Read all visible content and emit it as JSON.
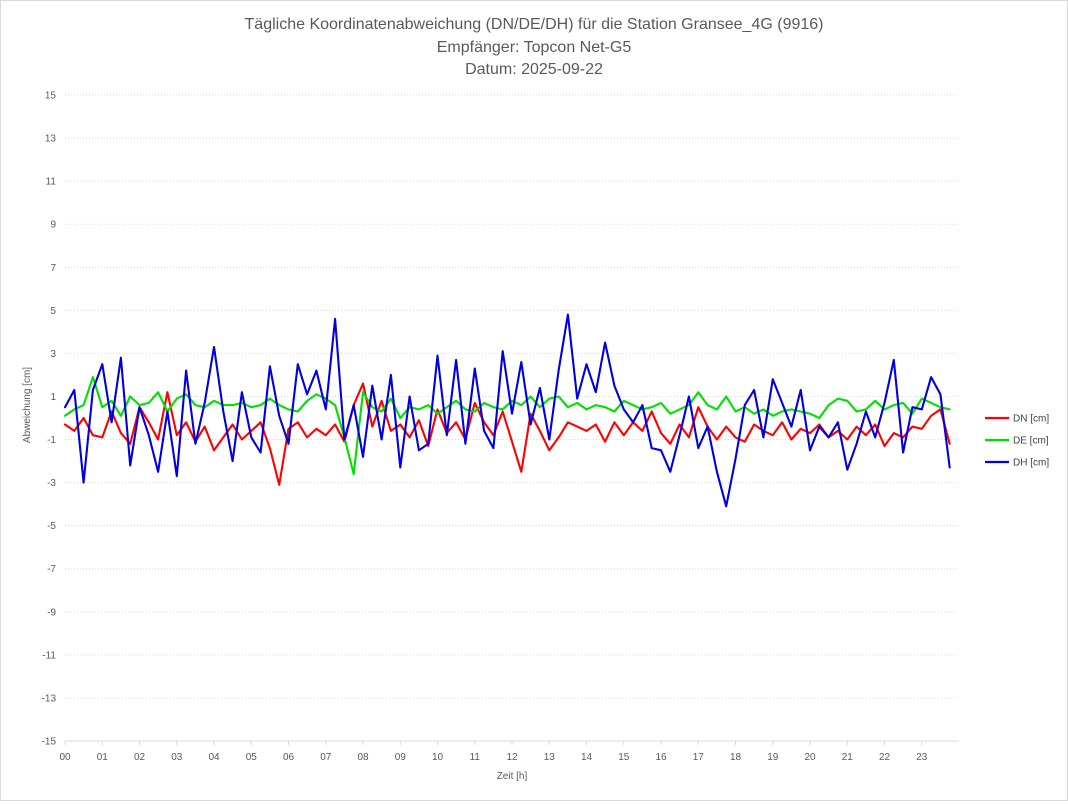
{
  "chart_data": {
    "type": "line",
    "title": [
      "Tägliche Koordinatenabweichung (DN/DE/DH) für die Station Gransee_4G (9916)",
      "Empfänger: Topcon Net-G5",
      "Datum: 2025-09-22"
    ],
    "xlabel": "Zeit [h]",
    "ylabel": "Abweichung [cm]",
    "ylim": [
      -15,
      15
    ],
    "yticks": [
      "15",
      "13",
      "11",
      "9",
      "7",
      "5",
      "3",
      "1",
      "-1",
      "-3",
      "-5",
      "-7",
      "-9",
      "-11",
      "-13",
      "-15"
    ],
    "xlim": [
      0,
      24
    ],
    "xticks": [
      "00",
      "01",
      "02",
      "03",
      "04",
      "05",
      "06",
      "07",
      "08",
      "09",
      "10",
      "11",
      "12",
      "13",
      "14",
      "15",
      "16",
      "17",
      "18",
      "19",
      "20",
      "21",
      "22",
      "23"
    ],
    "legend_position": "right",
    "x": [
      0,
      0.25,
      0.5,
      0.75,
      1,
      1.25,
      1.5,
      1.75,
      2,
      2.25,
      2.5,
      2.75,
      3,
      3.25,
      3.5,
      3.75,
      4,
      4.25,
      4.5,
      4.75,
      5,
      5.25,
      5.5,
      5.75,
      6,
      6.25,
      6.5,
      6.75,
      7,
      7.25,
      7.5,
      7.75,
      8,
      8.25,
      8.5,
      8.75,
      9,
      9.25,
      9.5,
      9.75,
      10,
      10.25,
      10.5,
      10.75,
      11,
      11.25,
      11.5,
      11.75,
      12,
      12.25,
      12.5,
      12.75,
      13,
      13.25,
      13.5,
      13.75,
      14,
      14.25,
      14.5,
      14.75,
      15,
      15.25,
      15.5,
      15.75,
      16,
      16.25,
      16.5,
      16.75,
      17,
      17.25,
      17.5,
      17.75,
      18,
      18.25,
      18.5,
      18.75,
      19,
      19.25,
      19.5,
      19.75,
      20,
      20.25,
      20.5,
      20.75,
      21,
      21.25,
      21.5,
      21.75,
      22,
      22.25,
      22.5,
      22.75,
      23,
      23.25,
      23.5,
      23.75
    ],
    "series": [
      {
        "name": "DN [cm]",
        "color": "#ff0000",
        "values": [
          -0.3,
          -0.6,
          0.0,
          -0.8,
          -0.9,
          0.3,
          -0.7,
          -1.2,
          0.5,
          -0.2,
          -1.0,
          1.2,
          -0.8,
          -0.2,
          -1.1,
          -0.4,
          -1.5,
          -0.9,
          -0.3,
          -1.0,
          -0.6,
          -0.2,
          -1.4,
          -3.1,
          -0.5,
          -0.2,
          -0.9,
          -0.5,
          -0.8,
          -0.3,
          -1.1,
          0.6,
          1.6,
          -0.4,
          0.8,
          -0.6,
          -0.3,
          -0.9,
          -0.1,
          -1.3,
          0.4,
          -0.7,
          -0.2,
          -1.0,
          0.7,
          -0.2,
          -0.8,
          0.3,
          -1.1,
          -2.5,
          0.2,
          -0.6,
          -1.5,
          -0.9,
          -0.2,
          -0.4,
          -0.6,
          -0.3,
          -1.1,
          -0.2,
          -0.8,
          -0.2,
          -0.6,
          0.3,
          -0.7,
          -1.2,
          -0.3,
          -0.9,
          0.5,
          -0.4,
          -1.0,
          -0.4,
          -0.9,
          -1.1,
          -0.3,
          -0.6,
          -0.8,
          -0.2,
          -1.0,
          -0.5,
          -0.7,
          -0.3,
          -0.9,
          -0.6,
          -1.0,
          -0.4,
          -0.8,
          -0.3,
          -1.3,
          -0.7,
          -0.9,
          -0.4,
          -0.5,
          0.1,
          0.4,
          -1.2
        ]
      },
      {
        "name": "DE [cm]",
        "color": "#00e000",
        "values": [
          0.1,
          0.4,
          0.6,
          1.9,
          0.5,
          0.8,
          0.1,
          1.0,
          0.6,
          0.7,
          1.2,
          0.3,
          0.9,
          1.1,
          0.6,
          0.5,
          0.8,
          0.6,
          0.6,
          0.7,
          0.5,
          0.6,
          0.9,
          0.6,
          0.4,
          0.3,
          0.8,
          1.1,
          0.9,
          0.6,
          -0.9,
          -2.6,
          1.2,
          0.5,
          0.3,
          0.9,
          0.0,
          0.5,
          0.4,
          0.6,
          0.2,
          0.5,
          0.8,
          0.4,
          0.3,
          0.7,
          0.5,
          0.4,
          0.8,
          0.6,
          1.0,
          0.5,
          0.9,
          1.0,
          0.5,
          0.7,
          0.4,
          0.6,
          0.5,
          0.3,
          0.8,
          0.6,
          0.4,
          0.5,
          0.7,
          0.2,
          0.4,
          0.6,
          1.2,
          0.6,
          0.4,
          1.0,
          0.3,
          0.5,
          0.2,
          0.4,
          0.1,
          0.3,
          0.4,
          0.3,
          0.2,
          0.0,
          0.6,
          0.9,
          0.8,
          0.3,
          0.4,
          0.8,
          0.4,
          0.6,
          0.7,
          0.2,
          0.9,
          0.7,
          0.5,
          0.4
        ]
      },
      {
        "name": "DH [cm]",
        "color": "#0000e0",
        "values": [
          0.5,
          1.3,
          -3.0,
          1.3,
          2.5,
          -0.2,
          2.8,
          -2.2,
          0.5,
          -0.8,
          -2.5,
          0.3,
          -2.7,
          2.2,
          -1.2,
          0.7,
          3.3,
          0.3,
          -2.0,
          1.2,
          -0.9,
          -1.6,
          2.4,
          0.1,
          -1.2,
          2.5,
          1.1,
          2.2,
          0.4,
          4.6,
          -1.0,
          0.6,
          -1.8,
          1.5,
          -1.0,
          2.0,
          -2.3,
          1.0,
          -1.5,
          -1.2,
          2.9,
          -0.8,
          2.7,
          -1.2,
          2.3,
          -0.6,
          -1.4,
          3.1,
          0.2,
          2.6,
          -0.3,
          1.4,
          -1.0,
          2.2,
          4.8,
          0.9,
          2.5,
          1.2,
          3.5,
          1.5,
          0.4,
          -0.2,
          0.6,
          -1.4,
          -1.5,
          -2.5,
          -0.8,
          1.0,
          -1.4,
          -0.4,
          -2.5,
          -4.1,
          -1.9,
          0.6,
          1.3,
          -0.9,
          1.8,
          0.7,
          -0.4,
          1.3,
          -1.5,
          -0.4,
          -0.9,
          -0.2,
          -2.4,
          -1.2,
          0.3,
          -0.9,
          0.7,
          2.7,
          -1.6,
          0.5,
          0.4,
          1.9,
          1.1,
          -2.3
        ]
      }
    ]
  }
}
